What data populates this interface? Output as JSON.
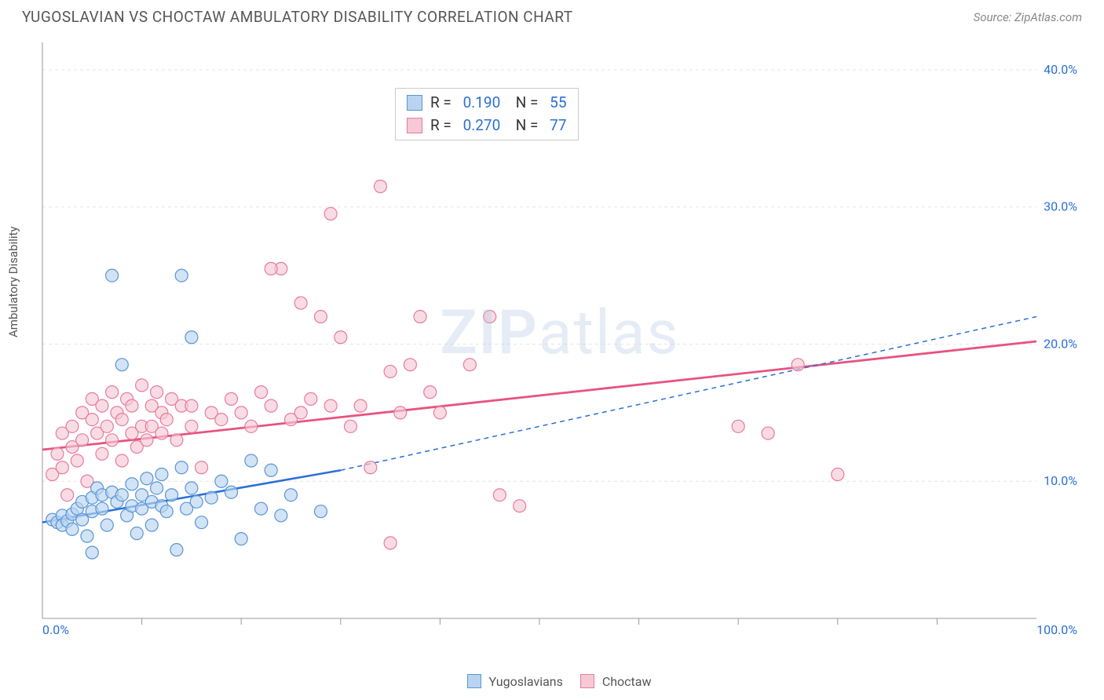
{
  "title": "YUGOSLAVIAN VS CHOCTAW AMBULATORY DISABILITY CORRELATION CHART",
  "source": "Source: ZipAtlas.com",
  "y_axis_label": "Ambulatory Disability",
  "watermark_a": "ZIP",
  "watermark_b": "atlas",
  "chart": {
    "type": "scatter",
    "xlim": [
      0,
      100
    ],
    "ylim": [
      0,
      42
    ],
    "x_axis": {
      "ticks_pct": [
        0.0,
        100.0
      ],
      "minor_ticks_pct": [
        10,
        20,
        30,
        40,
        50,
        60,
        70,
        80,
        90
      ]
    },
    "y_axis": {
      "ticks_pct": [
        10.0,
        20.0,
        30.0,
        40.0
      ]
    },
    "grid_color": "#e6e6e6",
    "axis_color": "#999",
    "tick_label_color": "#2a6fd6",
    "background_color": "#ffffff",
    "marker_radius": 8,
    "marker_stroke_width": 1.2,
    "series": [
      {
        "name": "Yugoslavians",
        "fill": "#b9d4f0",
        "stroke": "#5a95d6",
        "R": "0.190",
        "N": "55",
        "regression": {
          "x1_pct": 0,
          "y1_pct": 7.0,
          "x2_pct": 30,
          "y2_pct": 10.8,
          "dash_from_x_pct": 30,
          "x3_pct": 100,
          "y3_pct": 22.0,
          "color": "#2a6fd6",
          "width": 2.5
        },
        "points_pct": [
          [
            1,
            7.2
          ],
          [
            1.5,
            7.0
          ],
          [
            2,
            7.5
          ],
          [
            2,
            6.8
          ],
          [
            2.5,
            7.1
          ],
          [
            3,
            7.6
          ],
          [
            3,
            6.5
          ],
          [
            3.5,
            8.0
          ],
          [
            4,
            7.2
          ],
          [
            4,
            8.5
          ],
          [
            4.5,
            6.0
          ],
          [
            5,
            7.8
          ],
          [
            5,
            8.8
          ],
          [
            5.5,
            9.5
          ],
          [
            6,
            8.0
          ],
          [
            6,
            9.0
          ],
          [
            6.5,
            6.8
          ],
          [
            7,
            9.2
          ],
          [
            7,
            25.0
          ],
          [
            7.5,
            8.5
          ],
          [
            8,
            18.5
          ],
          [
            8,
            9.0
          ],
          [
            8.5,
            7.5
          ],
          [
            9,
            9.8
          ],
          [
            9,
            8.2
          ],
          [
            9.5,
            6.2
          ],
          [
            10,
            9.0
          ],
          [
            10,
            8.0
          ],
          [
            10.5,
            10.2
          ],
          [
            11,
            8.5
          ],
          [
            11,
            6.8
          ],
          [
            11.5,
            9.5
          ],
          [
            12,
            8.2
          ],
          [
            12,
            10.5
          ],
          [
            12.5,
            7.8
          ],
          [
            13,
            9.0
          ],
          [
            13.5,
            5.0
          ],
          [
            14,
            11.0
          ],
          [
            14.5,
            8.0
          ],
          [
            15,
            20.5
          ],
          [
            15,
            9.5
          ],
          [
            15.5,
            8.5
          ],
          [
            16,
            7.0
          ],
          [
            17,
            8.8
          ],
          [
            18,
            10.0
          ],
          [
            19,
            9.2
          ],
          [
            20,
            5.8
          ],
          [
            21,
            11.5
          ],
          [
            22,
            8.0
          ],
          [
            23,
            10.8
          ],
          [
            24,
            7.5
          ],
          [
            25,
            9.0
          ],
          [
            28,
            7.8
          ],
          [
            14,
            25.0
          ],
          [
            5,
            4.8
          ]
        ]
      },
      {
        "name": "Choctaw",
        "fill": "#f6c9d4",
        "stroke": "#e77aa0",
        "R": "0.270",
        "N": "77",
        "regression": {
          "x1_pct": 0,
          "y1_pct": 12.3,
          "x2_pct": 100,
          "y2_pct": 20.2,
          "color": "#e8537f",
          "width": 2.8
        },
        "points_pct": [
          [
            1,
            10.5
          ],
          [
            1.5,
            12.0
          ],
          [
            2,
            11.0
          ],
          [
            2,
            13.5
          ],
          [
            2.5,
            9.0
          ],
          [
            3,
            12.5
          ],
          [
            3,
            14.0
          ],
          [
            3.5,
            11.5
          ],
          [
            4,
            13.0
          ],
          [
            4,
            15.0
          ],
          [
            4.5,
            10.0
          ],
          [
            5,
            14.5
          ],
          [
            5,
            16.0
          ],
          [
            5.5,
            13.5
          ],
          [
            6,
            15.5
          ],
          [
            6,
            12.0
          ],
          [
            6.5,
            14.0
          ],
          [
            7,
            16.5
          ],
          [
            7,
            13.0
          ],
          [
            7.5,
            15.0
          ],
          [
            8,
            14.5
          ],
          [
            8,
            11.5
          ],
          [
            8.5,
            16.0
          ],
          [
            9,
            13.5
          ],
          [
            9,
            15.5
          ],
          [
            9.5,
            12.5
          ],
          [
            10,
            14.0
          ],
          [
            10,
            17.0
          ],
          [
            10.5,
            13.0
          ],
          [
            11,
            15.5
          ],
          [
            11,
            14.0
          ],
          [
            11.5,
            16.5
          ],
          [
            12,
            13.5
          ],
          [
            12,
            15.0
          ],
          [
            12.5,
            14.5
          ],
          [
            13,
            16.0
          ],
          [
            13.5,
            13.0
          ],
          [
            14,
            15.5
          ],
          [
            15,
            14.0
          ],
          [
            16,
            11.0
          ],
          [
            17,
            15.0
          ],
          [
            18,
            14.5
          ],
          [
            19,
            16.0
          ],
          [
            20,
            15.0
          ],
          [
            21,
            14.0
          ],
          [
            22,
            16.5
          ],
          [
            23,
            15.5
          ],
          [
            24,
            25.5
          ],
          [
            25,
            14.5
          ],
          [
            26,
            15.0
          ],
          [
            27,
            16.0
          ],
          [
            28,
            22.0
          ],
          [
            29,
            15.5
          ],
          [
            29,
            29.5
          ],
          [
            30,
            20.5
          ],
          [
            31,
            14.0
          ],
          [
            32,
            15.5
          ],
          [
            33,
            11.0
          ],
          [
            34,
            31.5
          ],
          [
            35,
            18.0
          ],
          [
            36,
            15.0
          ],
          [
            37,
            18.5
          ],
          [
            38,
            22.0
          ],
          [
            39,
            16.5
          ],
          [
            40,
            15.0
          ],
          [
            43,
            18.5
          ],
          [
            45,
            22.0
          ],
          [
            46,
            9.0
          ],
          [
            48,
            8.2
          ],
          [
            35,
            5.5
          ],
          [
            70,
            14.0
          ],
          [
            73,
            13.5
          ],
          [
            76,
            18.5
          ],
          [
            80,
            10.5
          ],
          [
            23,
            25.5
          ],
          [
            26,
            23.0
          ],
          [
            15,
            15.5
          ]
        ]
      }
    ]
  },
  "bottom_legend": {
    "items": [
      {
        "label": "Yugoslavians",
        "fill": "#b9d4f0",
        "stroke": "#5a95d6"
      },
      {
        "label": "Choctaw",
        "fill": "#f6c9d4",
        "stroke": "#e77aa0"
      }
    ]
  }
}
